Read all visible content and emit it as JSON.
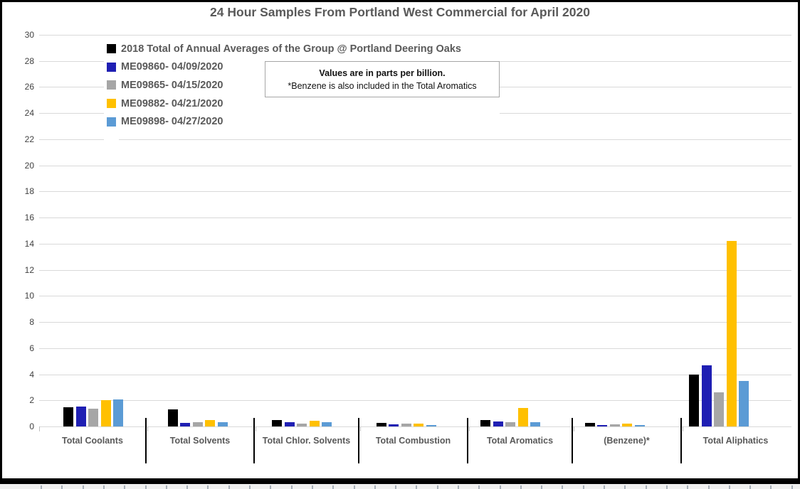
{
  "chart_data": {
    "type": "bar",
    "title": "24 Hour Samples From Portland West Commercial for April 2020",
    "categories": [
      "Total Coolants",
      "Total Solvents",
      "Total Chlor. Solvents",
      "Total Combustion",
      "Total Aromatics",
      "(Benzene)*",
      "Total Aliphatics"
    ],
    "series": [
      {
        "name": "2018 Total of Annual Averages of the Group @ Portland Deering Oaks",
        "color": "#000000",
        "values": [
          1.45,
          1.3,
          0.5,
          0.25,
          0.5,
          0.25,
          4.0
        ]
      },
      {
        "name": "ME09860- 04/09/2020",
        "color": "#1F1FB3",
        "values": [
          1.5,
          0.25,
          0.3,
          0.15,
          0.4,
          0.1,
          4.7
        ]
      },
      {
        "name": "ME09865- 04/15/2020",
        "color": "#A6A6A6",
        "values": [
          1.35,
          0.3,
          0.2,
          0.2,
          0.35,
          0.15,
          2.6
        ]
      },
      {
        "name": "ME09882- 04/21/2020",
        "color": "#FFC000",
        "values": [
          2.0,
          0.5,
          0.45,
          0.2,
          1.4,
          0.2,
          14.2
        ]
      },
      {
        "name": "ME09898- 04/27/2020",
        "color": "#5B9BD5",
        "values": [
          2.05,
          0.3,
          0.3,
          0.1,
          0.3,
          0.1,
          3.5
        ]
      }
    ],
    "ylabel": "",
    "xlabel": "",
    "ylim": [
      0,
      30
    ],
    "yticks": [
      0,
      2,
      4,
      6,
      8,
      10,
      12,
      14,
      16,
      18,
      20,
      22,
      24,
      26,
      28,
      30
    ],
    "grid": true,
    "legend_position": "top-left-vertical",
    "annotation": {
      "line1": "Values are in parts per billion.",
      "line2": "*Benzene is also included in the Total Aromatics"
    }
  },
  "colors": {
    "title_text": "#595959",
    "axis_text": "#404040",
    "category_text": "#595959",
    "gridline": "#D9D9D9",
    "separator": "#000000",
    "note_border": "#A6A6A6",
    "frame_border": "#000000"
  }
}
